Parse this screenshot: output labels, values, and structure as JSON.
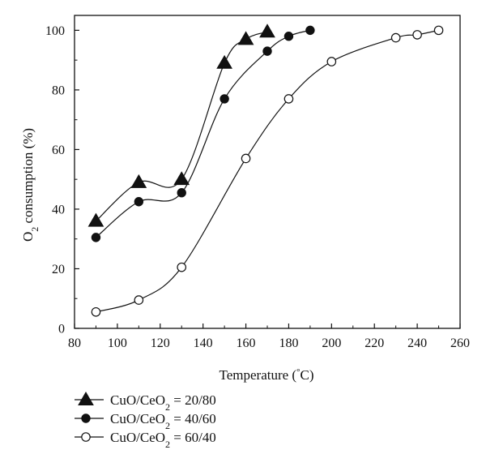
{
  "chart_data": {
    "type": "line",
    "title": "",
    "xlabel": "Temperature (°C)",
    "ylabel": "O2 consumption (%)",
    "xlim": [
      80,
      260
    ],
    "ylim": [
      0,
      105
    ],
    "x_ticks": [
      80,
      100,
      120,
      140,
      160,
      180,
      200,
      220,
      240,
      260
    ],
    "y_ticks": [
      0,
      20,
      40,
      60,
      80,
      100
    ],
    "grid": false,
    "legend_position": "below-left",
    "series": [
      {
        "name": "CuO/CeO2 = 20/80",
        "marker": "filled-triangle",
        "x": [
          90,
          110,
          130,
          150,
          160,
          170
        ],
        "y": [
          36,
          49,
          50,
          89,
          97,
          99.5
        ]
      },
      {
        "name": "CuO/CeO2 = 40/60",
        "marker": "filled-circle",
        "x": [
          90,
          110,
          130,
          150,
          170,
          180,
          190
        ],
        "y": [
          30.5,
          42.5,
          45.5,
          77,
          93,
          98,
          100
        ]
      },
      {
        "name": "CuO/CeO2 = 60/40",
        "marker": "open-circle",
        "x": [
          90,
          110,
          130,
          160,
          180,
          200,
          230,
          240,
          250
        ],
        "y": [
          5.5,
          9.5,
          20.5,
          57,
          77,
          89.5,
          97.5,
          98.5,
          100
        ]
      }
    ]
  }
}
